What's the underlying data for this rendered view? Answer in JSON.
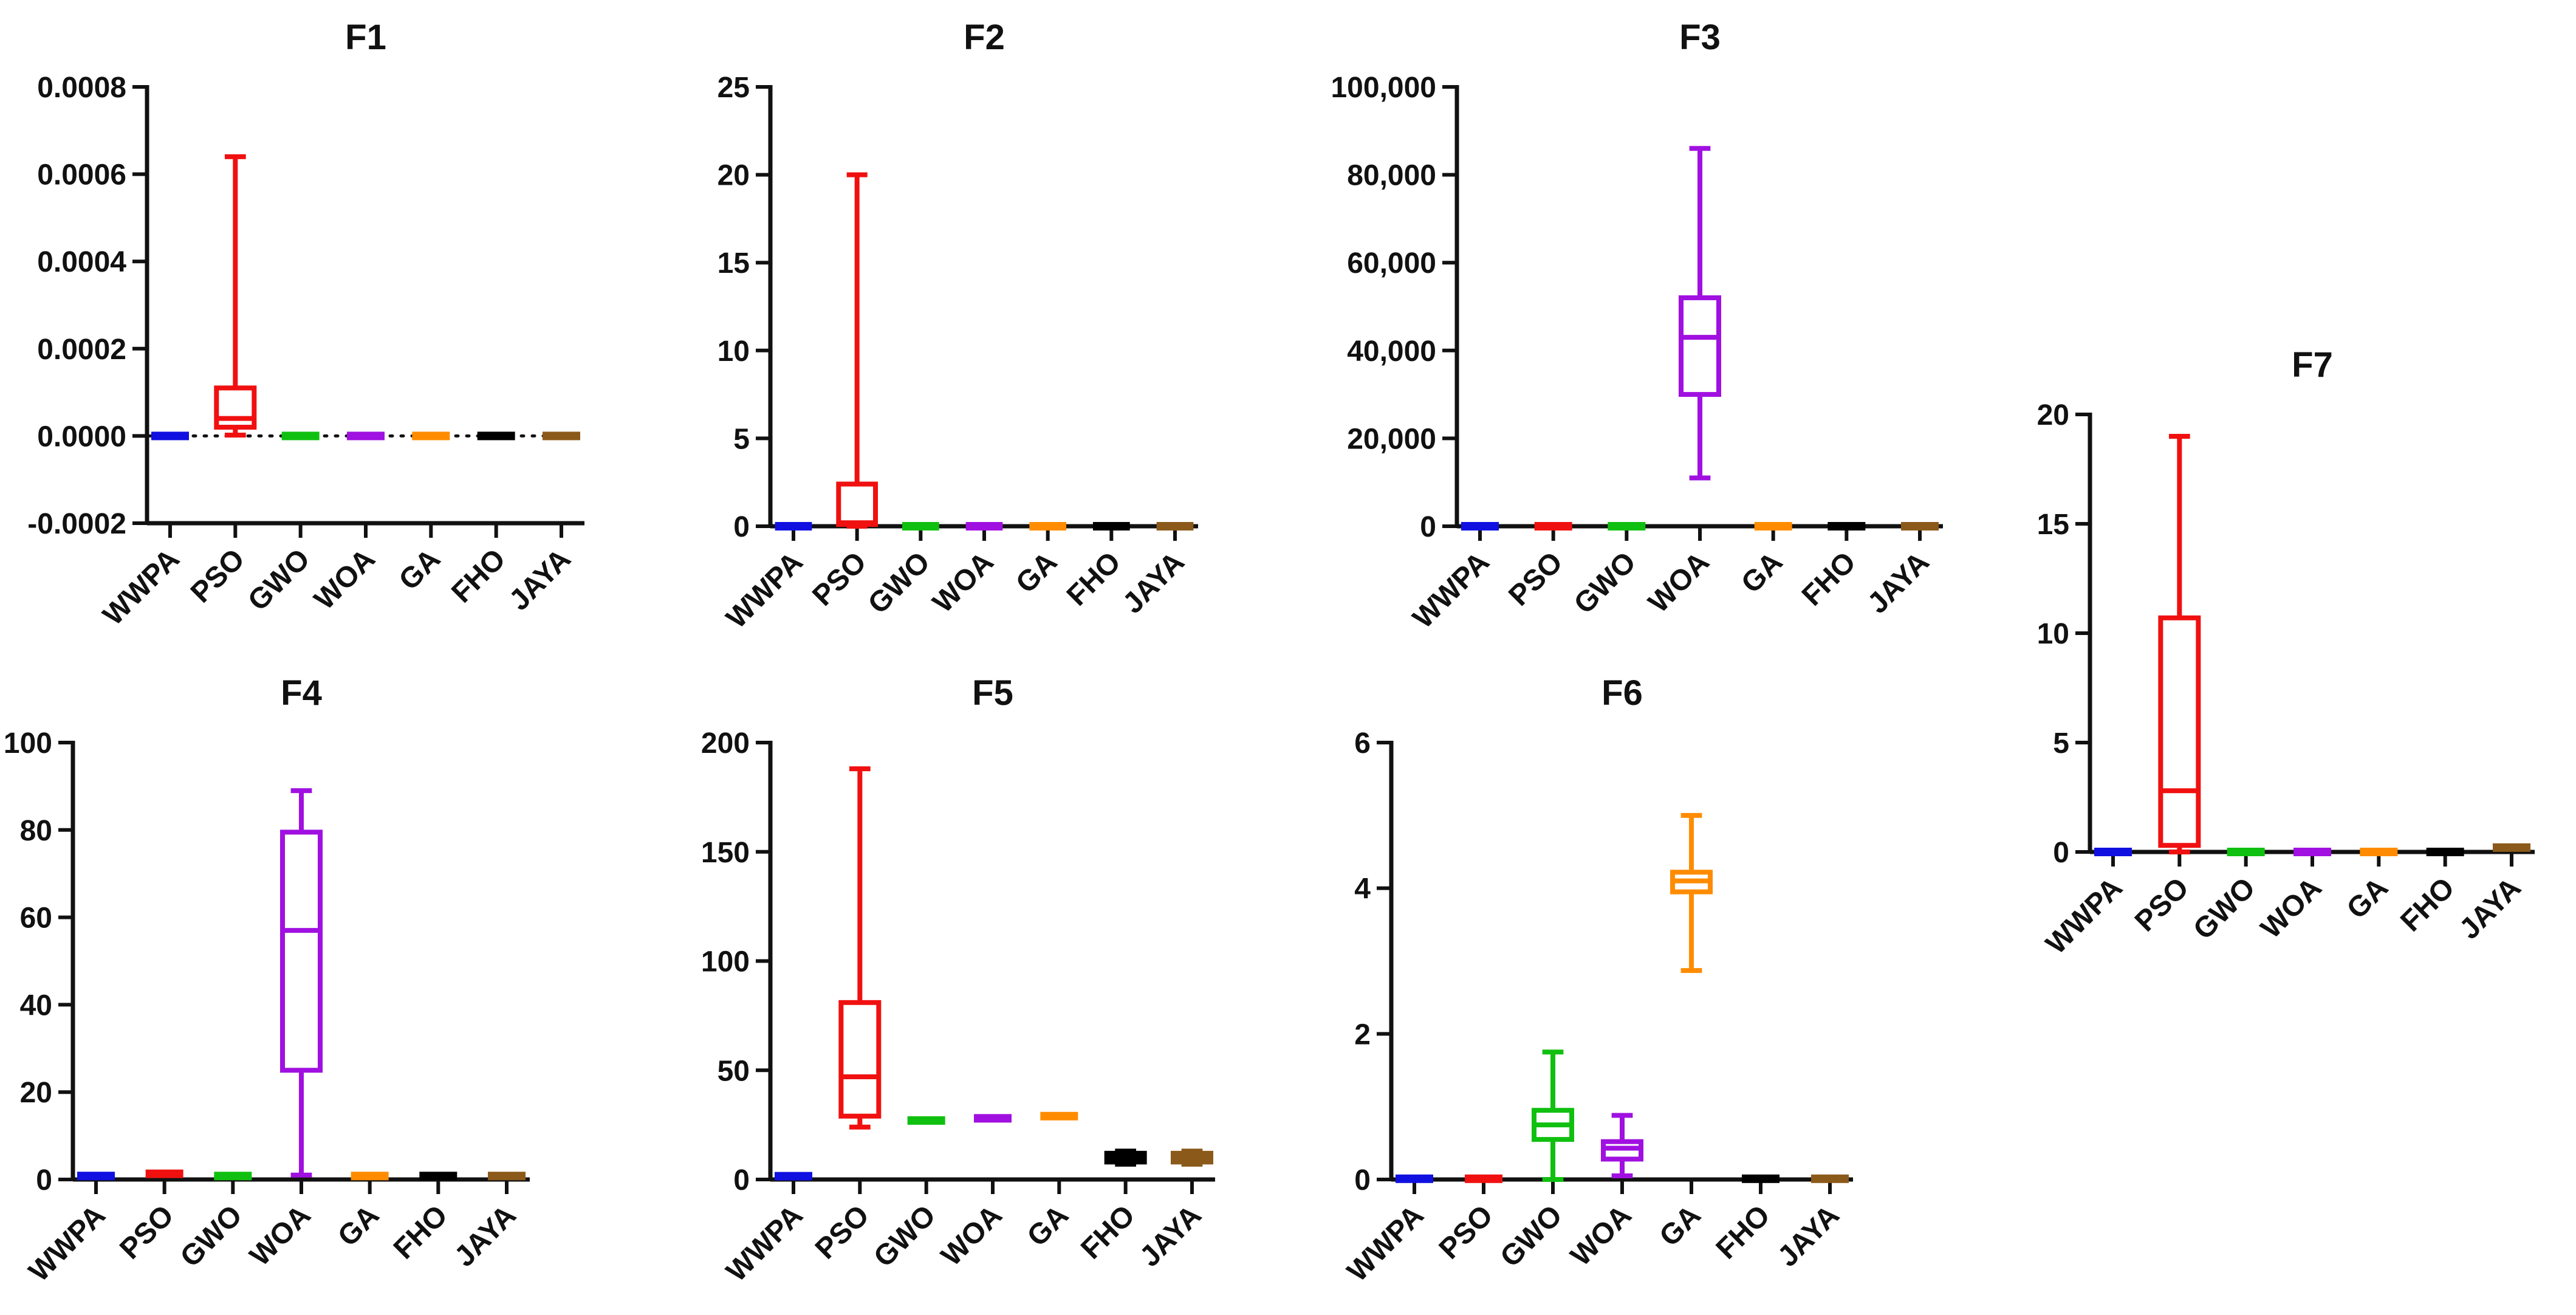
{
  "colors": {
    "WWPA": "#1010e0",
    "PSO": "#f01010",
    "GWO": "#10c010",
    "WOA": "#a010e0",
    "GA": "#ff8c00",
    "FHO": "#000000",
    "JAYA": "#8b5a1a"
  },
  "chart_data": [
    {
      "type": "box",
      "title": "F1",
      "categories": [
        "WWPA",
        "PSO",
        "GWO",
        "WOA",
        "GA",
        "FHO",
        "JAYA"
      ],
      "ylim": [
        -0.0002,
        0.0008
      ],
      "yticks": [
        -0.0002,
        0,
        0.0002,
        0.0004,
        0.0006,
        0.0008
      ],
      "ytick_labels": [
        "-0.0002",
        "0.0000",
        "0.0002",
        "0.0004",
        "0.0006",
        "0.0008"
      ],
      "zero_line": true,
      "boxes": [
        {
          "min": 0,
          "q1": 0,
          "median": 0,
          "q3": 0,
          "max": 0
        },
        {
          "min": 2e-06,
          "q1": 2e-05,
          "median": 4e-05,
          "q3": 0.00011,
          "max": 0.00064
        },
        {
          "min": 0,
          "q1": 0,
          "median": 0,
          "q3": 0,
          "max": 0
        },
        {
          "min": 0,
          "q1": 0,
          "median": 0,
          "q3": 0,
          "max": 0
        },
        {
          "min": 0,
          "q1": 0,
          "median": 0,
          "q3": 0,
          "max": 0
        },
        {
          "min": 0,
          "q1": 0,
          "median": 0,
          "q3": 0,
          "max": 0
        },
        {
          "min": 0,
          "q1": 0,
          "median": 0,
          "q3": 0,
          "max": 0
        }
      ]
    },
    {
      "type": "box",
      "title": "F2",
      "categories": [
        "WWPA",
        "PSO",
        "GWO",
        "WOA",
        "GA",
        "FHO",
        "JAYA"
      ],
      "ylim": [
        0,
        25
      ],
      "yticks": [
        0,
        5,
        10,
        15,
        20,
        25
      ],
      "ytick_labels": [
        "0",
        "5",
        "10",
        "15",
        "20",
        "25"
      ],
      "boxes": [
        {
          "min": 0,
          "q1": 0,
          "median": 0,
          "q3": 0,
          "max": 0
        },
        {
          "min": 0,
          "q1": 0.1,
          "median": 0.2,
          "q3": 2.4,
          "max": 20
        },
        {
          "min": 0,
          "q1": 0,
          "median": 0,
          "q3": 0,
          "max": 0
        },
        {
          "min": 0,
          "q1": 0,
          "median": 0,
          "q3": 0,
          "max": 0
        },
        {
          "min": 0,
          "q1": 0,
          "median": 0,
          "q3": 0,
          "max": 0
        },
        {
          "min": 0,
          "q1": 0,
          "median": 0,
          "q3": 0,
          "max": 0
        },
        {
          "min": 0,
          "q1": 0,
          "median": 0,
          "q3": 0,
          "max": 0
        }
      ]
    },
    {
      "type": "box",
      "title": "F3",
      "categories": [
        "WWPA",
        "PSO",
        "GWO",
        "WOA",
        "GA",
        "FHO",
        "JAYA"
      ],
      "ylim": [
        0,
        100000
      ],
      "yticks": [
        0,
        20000,
        40000,
        60000,
        80000,
        100000
      ],
      "ytick_labels": [
        "0",
        "20,000",
        "40,000",
        "60,000",
        "80,000",
        "100,000"
      ],
      "boxes": [
        {
          "min": 0,
          "q1": 0,
          "median": 0,
          "q3": 0,
          "max": 0
        },
        {
          "min": 0,
          "q1": 0,
          "median": 0,
          "q3": 0,
          "max": 0
        },
        {
          "min": 0,
          "q1": 0,
          "median": 0,
          "q3": 0,
          "max": 0
        },
        {
          "min": 11000,
          "q1": 30000,
          "median": 43000,
          "q3": 52000,
          "max": 86000
        },
        {
          "min": 0,
          "q1": 0,
          "median": 0,
          "q3": 0,
          "max": 0
        },
        {
          "min": 0,
          "q1": 0,
          "median": 0,
          "q3": 0,
          "max": 0
        },
        {
          "min": 0,
          "q1": 0,
          "median": 0,
          "q3": 0,
          "max": 0
        }
      ]
    },
    {
      "type": "box",
      "title": "F7",
      "categories": [
        "WWPA",
        "PSO",
        "GWO",
        "WOA",
        "GA",
        "FHO",
        "JAYA"
      ],
      "ylim": [
        0,
        20
      ],
      "yticks": [
        0,
        5,
        10,
        15,
        20
      ],
      "ytick_labels": [
        "0",
        "5",
        "10",
        "15",
        "20"
      ],
      "boxes": [
        {
          "min": 0,
          "q1": 0,
          "median": 0,
          "q3": 0,
          "max": 0
        },
        {
          "min": 0,
          "q1": 0.3,
          "median": 2.8,
          "q3": 10.7,
          "max": 19
        },
        {
          "min": 0,
          "q1": 0,
          "median": 0,
          "q3": 0,
          "max": 0
        },
        {
          "min": 0,
          "q1": 0,
          "median": 0,
          "q3": 0,
          "max": 0
        },
        {
          "min": 0,
          "q1": 0,
          "median": 0,
          "q3": 0,
          "max": 0
        },
        {
          "min": 0,
          "q1": 0,
          "median": 0,
          "q3": 0,
          "max": 0
        },
        {
          "min": 0,
          "q1": 0.1,
          "median": 0.2,
          "q3": 0.3,
          "max": 0.5
        }
      ]
    },
    {
      "type": "box",
      "title": "F4",
      "categories": [
        "WWPA",
        "PSO",
        "GWO",
        "WOA",
        "GA",
        "FHO",
        "JAYA"
      ],
      "ylim": [
        0,
        100
      ],
      "yticks": [
        0,
        20,
        40,
        60,
        80,
        100
      ],
      "ytick_labels": [
        "0",
        "20",
        "40",
        "60",
        "80",
        "100"
      ],
      "boxes": [
        {
          "min": 0.5,
          "q1": 0.6,
          "median": 0.8,
          "q3": 1,
          "max": 1.2
        },
        {
          "min": 0.8,
          "q1": 1,
          "median": 1.3,
          "q3": 1.6,
          "max": 2
        },
        {
          "min": 0.5,
          "q1": 0.6,
          "median": 0.8,
          "q3": 1,
          "max": 1.2
        },
        {
          "min": 1,
          "q1": 25,
          "median": 57,
          "q3": 79.5,
          "max": 89
        },
        {
          "min": 0.5,
          "q1": 0.6,
          "median": 0.8,
          "q3": 1,
          "max": 1.2
        },
        {
          "min": 0.5,
          "q1": 0.6,
          "median": 0.8,
          "q3": 1,
          "max": 1.2
        },
        {
          "min": 0.5,
          "q1": 0.6,
          "median": 0.8,
          "q3": 1,
          "max": 1.2
        }
      ]
    },
    {
      "type": "box",
      "title": "F5",
      "categories": [
        "WWPA",
        "PSO",
        "GWO",
        "WOA",
        "GA",
        "FHO",
        "JAYA"
      ],
      "ylim": [
        0,
        200
      ],
      "yticks": [
        0,
        50,
        100,
        150,
        200
      ],
      "ytick_labels": [
        "0",
        "50",
        "100",
        "150",
        "200"
      ],
      "boxes": [
        {
          "min": 0.5,
          "q1": 1,
          "median": 1.5,
          "q3": 2,
          "max": 2.5
        },
        {
          "min": 24,
          "q1": 29,
          "median": 47,
          "q3": 81,
          "max": 188
        },
        {
          "min": 25,
          "q1": 26,
          "median": 27,
          "q3": 28,
          "max": 29
        },
        {
          "min": 26,
          "q1": 27,
          "median": 28,
          "q3": 29,
          "max": 30
        },
        {
          "min": 27,
          "q1": 28,
          "median": 29,
          "q3": 30,
          "max": 31
        },
        {
          "min": 7,
          "q1": 8,
          "median": 10,
          "q3": 12,
          "max": 13
        },
        {
          "min": 7,
          "q1": 8,
          "median": 10,
          "q3": 12,
          "max": 13
        }
      ]
    },
    {
      "type": "box",
      "title": "F6",
      "categories": [
        "WWPA",
        "PSO",
        "GWO",
        "WOA",
        "GA",
        "FHO",
        "JAYA"
      ],
      "ylim": [
        0,
        6
      ],
      "yticks": [
        0,
        2,
        4,
        6
      ],
      "ytick_labels": [
        "0",
        "2",
        "4",
        "6"
      ],
      "boxes": [
        {
          "min": 0,
          "q1": 0,
          "median": 0.01,
          "q3": 0.02,
          "max": 0.03
        },
        {
          "min": 0,
          "q1": 0,
          "median": 0.01,
          "q3": 0.02,
          "max": 0.03
        },
        {
          "min": 0,
          "q1": 0.55,
          "median": 0.75,
          "q3": 0.95,
          "max": 1.75
        },
        {
          "min": 0.05,
          "q1": 0.28,
          "median": 0.43,
          "q3": 0.52,
          "max": 0.88
        },
        {
          "min": 2.87,
          "q1": 3.95,
          "median": 4.1,
          "q3": 4.22,
          "max": 5
        },
        {
          "min": 0,
          "q1": 0,
          "median": 0.01,
          "q3": 0.02,
          "max": 0.03
        },
        {
          "min": 0,
          "q1": 0,
          "median": 0.01,
          "q3": 0.02,
          "max": 0.03
        }
      ]
    }
  ]
}
